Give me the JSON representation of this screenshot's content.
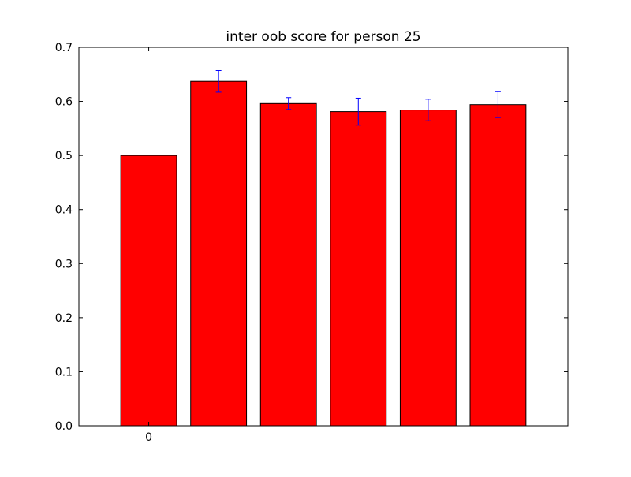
{
  "chart_data": {
    "type": "bar",
    "title": "inter oob score for person 25",
    "xlabel": "",
    "ylabel": "",
    "categories": [
      "0",
      "",
      "",
      "",
      "",
      ""
    ],
    "values": [
      0.5,
      0.637,
      0.596,
      0.581,
      0.584,
      0.594
    ],
    "errors": [
      0,
      0.02,
      0.011,
      0.025,
      0.02,
      0.024
    ],
    "ylim": [
      0,
      0.7
    ],
    "yticks": [
      "0.0",
      "0.1",
      "0.2",
      "0.3",
      "0.4",
      "0.5",
      "0.6",
      "0.7"
    ],
    "bar_color": "#ff0000",
    "error_color": "#0000ff",
    "grid": false,
    "legend": "none"
  }
}
